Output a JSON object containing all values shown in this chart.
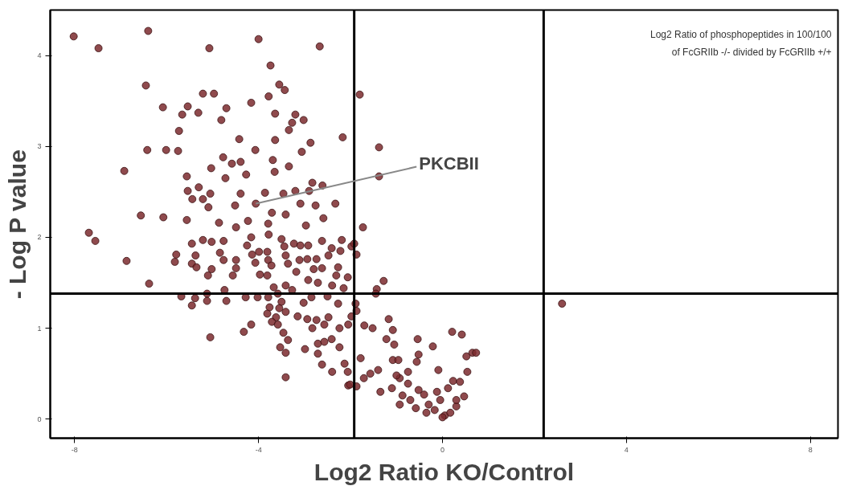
{
  "chart_data": {
    "type": "scatter",
    "xlabel": "Log2 Ratio KO/Control",
    "ylabel": "- Log P value",
    "xlim": [
      -8.53,
      8.6
    ],
    "ylim": [
      -0.21,
      4.5
    ],
    "xticks": [
      -8,
      -4,
      0,
      4,
      8
    ],
    "yticks": [
      0,
      1,
      2,
      3,
      4
    ],
    "grid": false,
    "marker": "circle",
    "ref_lines": [
      {
        "axis": "x",
        "value": -1.92,
        "color": "#000000"
      },
      {
        "axis": "x",
        "value": 2.2,
        "color": "#000000"
      },
      {
        "axis": "y",
        "value": 1.38,
        "color": "#000000"
      }
    ],
    "annotations": [
      {
        "text": "PKCBII",
        "x": -4.06,
        "y": 2.37
      },
      "Log2 Ratio of phosphopeptides in 100/100\nof FcGRIIb -/- divided by FcGRIIb +/+"
    ],
    "series": [
      {
        "color": "#7b2a2e",
        "x": [
          -8.02,
          -6.4,
          -7.48,
          -5.07,
          -4.0,
          -2.67,
          -3.74,
          -6.45,
          -3.55,
          -3.43,
          -5.21,
          -4.97,
          -1.8,
          -3.78,
          -4.16,
          -6.08,
          -5.54,
          -4.7,
          -5.66,
          -5.31,
          -4.81,
          -3.64,
          -3.2,
          -3.02,
          -3.27,
          -3.34,
          -5.73,
          -4.42,
          -3.64,
          -2.87,
          -2.17,
          -6.42,
          -6.01,
          -5.75,
          -4.07,
          -3.06,
          -4.77,
          -4.58,
          -4.39,
          -3.69,
          -6.92,
          -5.03,
          -3.65,
          -3.34,
          -5.56,
          -4.72,
          -4.27,
          -2.83,
          -2.61,
          -5.54,
          -5.3,
          -5.05,
          -4.39,
          -3.86,
          -3.46,
          -3.2,
          -2.9,
          -5.44,
          -5.21,
          -5.09,
          -4.51,
          -4.06,
          -3.09,
          -2.76,
          -2.33,
          -6.56,
          -6.07,
          -5.56,
          -4.86,
          -4.23,
          -3.71,
          -3.41,
          -2.59,
          -1.73,
          -7.69,
          -4.49,
          -3.79,
          -2.97,
          -7.55,
          -6.87,
          -6.38,
          -5.45,
          -5.21,
          -5.02,
          -4.76,
          -5.82,
          -5.79,
          -5.37,
          -5.45,
          -5.35,
          -5.02,
          -5.1,
          -4.84,
          -4.76,
          -4.49,
          -4.49,
          -4.56,
          -4.25,
          -4.16,
          -4.14,
          -3.99,
          -3.81,
          -4.07,
          -3.97,
          -3.79,
          -3.72,
          -3.81,
          -3.67,
          -3.78,
          -3.5,
          -3.44,
          -3.41,
          -3.23,
          -3.09,
          -2.92,
          -3.11,
          -3.36,
          -3.18,
          -2.94,
          -2.74,
          -2.62,
          -2.41,
          -2.19,
          -2.22,
          -1.98,
          -1.87,
          -2.48,
          -2.62,
          -2.27,
          -2.31,
          -2.06,
          -2.8,
          -2.92,
          -2.71,
          -2.4,
          -2.15,
          -3.41,
          -3.27,
          -4.74,
          -5.12,
          -5.68,
          -5.38,
          -5.45,
          -5.12,
          -4.7,
          -4.28,
          -4.02,
          -3.79,
          -3.58,
          -3.5,
          -3.76,
          -3.81,
          -3.55,
          -3.41,
          -3.62,
          -3.71,
          -3.58,
          -3.15,
          -3.02,
          -2.85,
          -2.5,
          -2.27,
          -2.94,
          -2.74,
          -2.48,
          -2.57,
          -2.83,
          -2.24,
          -2.05,
          -4.16,
          -4.32,
          -5.05,
          -3.46,
          -3.36,
          -3.53,
          -3.41,
          -2.99,
          -2.71,
          -2.57,
          -2.41,
          -2.71,
          -2.62,
          -2.4,
          -2.24,
          -2.13,
          -2.06,
          -2.05,
          -3.41,
          -1.78,
          -1.38,
          -1.38,
          -1.92,
          -1.28,
          -1.43,
          -1.45,
          2.6,
          -1.89,
          -1.87,
          -1.98,
          -1.7,
          -1.52,
          -1.17,
          -1.08,
          -1.22,
          -1.05,
          -0.54,
          -0.21,
          0.21,
          0.42,
          0.65,
          0.73,
          0.52,
          0.54,
          -0.09,
          -0.52,
          -0.56,
          -0.75,
          -1.08,
          -0.96,
          -1.4,
          -1.57,
          -1.71,
          -2.01,
          -1.87,
          -1.35,
          -1.1,
          -0.93,
          -0.75,
          -0.87,
          -0.93,
          -0.58,
          -0.52,
          -0.4,
          -0.3,
          -0.12,
          -0.05,
          0.05,
          0.0,
          0.17,
          0.3,
          0.47,
          0.23,
          0.38,
          0.12,
          -0.17,
          -0.35,
          -1.0,
          -0.7,
          0.3
        ],
        "values": [
          4.21,
          4.27,
          4.08,
          4.08,
          4.18,
          4.1,
          3.89,
          3.67,
          3.68,
          3.62,
          3.58,
          3.58,
          3.57,
          3.55,
          3.48,
          3.43,
          3.44,
          3.42,
          3.35,
          3.37,
          3.29,
          3.36,
          3.35,
          3.29,
          3.26,
          3.18,
          3.17,
          3.08,
          3.07,
          3.04,
          3.1,
          2.96,
          2.96,
          2.95,
          2.96,
          2.94,
          2.88,
          2.81,
          2.83,
          2.85,
          2.73,
          2.76,
          2.72,
          2.78,
          2.67,
          2.65,
          2.69,
          2.6,
          2.57,
          2.51,
          2.55,
          2.48,
          2.48,
          2.49,
          2.48,
          2.51,
          2.51,
          2.42,
          2.42,
          2.33,
          2.35,
          2.37,
          2.37,
          2.35,
          2.37,
          2.24,
          2.22,
          2.19,
          2.16,
          2.18,
          2.27,
          2.25,
          2.21,
          2.11,
          2.05,
          2.11,
          2.15,
          2.13,
          1.96,
          1.74,
          1.49,
          1.93,
          1.97,
          1.95,
          1.96,
          1.73,
          1.81,
          1.8,
          1.71,
          1.67,
          1.65,
          1.58,
          1.83,
          1.75,
          1.75,
          1.66,
          1.58,
          1.91,
          2.0,
          1.81,
          1.84,
          1.84,
          1.72,
          1.59,
          1.75,
          1.69,
          1.58,
          1.45,
          2.03,
          1.98,
          1.9,
          1.8,
          1.93,
          1.91,
          1.91,
          1.75,
          1.71,
          1.62,
          1.76,
          1.76,
          1.96,
          1.88,
          1.97,
          1.85,
          1.9,
          1.81,
          1.8,
          1.66,
          1.67,
          1.58,
          1.56,
          1.65,
          1.53,
          1.5,
          1.47,
          1.44,
          1.47,
          1.42,
          1.42,
          1.38,
          1.35,
          1.33,
          1.25,
          1.3,
          1.3,
          1.34,
          1.34,
          1.34,
          1.38,
          1.29,
          1.23,
          1.16,
          1.22,
          1.18,
          1.12,
          1.07,
          1.04,
          1.13,
          1.28,
          1.34,
          1.35,
          1.27,
          1.1,
          1.09,
          1.12,
          1.04,
          1.0,
          1.0,
          1.04,
          1.04,
          0.96,
          0.9,
          0.95,
          0.87,
          0.79,
          0.73,
          0.77,
          0.83,
          0.85,
          0.88,
          0.72,
          0.6,
          0.52,
          0.79,
          0.61,
          0.52,
          0.37,
          0.46,
          0.67,
          2.99,
          2.67,
          1.93,
          1.52,
          1.43,
          1.38,
          1.27,
          1.27,
          1.19,
          1.13,
          1.03,
          1.0,
          1.1,
          0.98,
          0.88,
          0.82,
          0.88,
          0.8,
          0.96,
          0.93,
          0.73,
          0.73,
          0.69,
          0.52,
          0.54,
          0.71,
          0.63,
          0.52,
          0.65,
          0.65,
          0.54,
          0.5,
          0.45,
          0.38,
          0.36,
          0.3,
          0.34,
          0.45,
          0.39,
          0.26,
          0.16,
          0.12,
          0.32,
          0.27,
          0.16,
          0.3,
          0.21,
          0.04,
          0.02,
          0.07,
          0.14,
          0.25,
          0.42,
          0.41,
          0.34,
          0.1,
          0.07,
          0.48,
          0.21,
          0.21
        ]
      }
    ]
  }
}
